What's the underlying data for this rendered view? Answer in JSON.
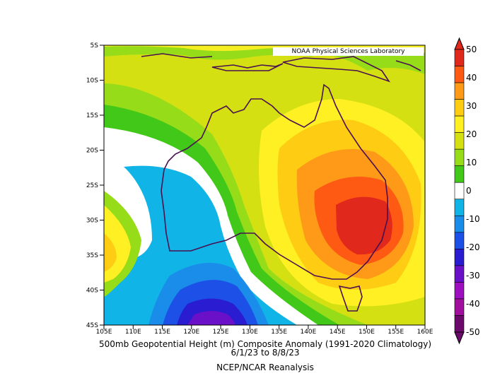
{
  "map": {
    "credit": "NOAA Physical Sciences Laboratory",
    "title_line1": "500mb Geopotential Height (m) Composite Anomaly (1991-2020 Climatology)",
    "title_line2": "6/1/23   to 8/8/23",
    "source": "NCEP/NCAR Reanalysis",
    "lat_ticks": [
      "5S",
      "10S",
      "15S",
      "20S",
      "25S",
      "30S",
      "35S",
      "40S",
      "45S"
    ],
    "lon_ticks": [
      "105E",
      "110E",
      "115E",
      "120E",
      "125E",
      "130E",
      "135E",
      "140E",
      "145E",
      "150E",
      "155E",
      "160E"
    ],
    "colorbar": {
      "labels": [
        "50",
        "40",
        "30",
        "20",
        "10",
        "0",
        "-10",
        "-20",
        "-30",
        "-40",
        "-50"
      ],
      "colors": [
        "#e0281c",
        "#ff5a14",
        "#ff9a18",
        "#ffcc14",
        "#fff024",
        "#d4e012",
        "#96dc18",
        "#42c818",
        "#ffffff",
        "#10b4e6",
        "#1a8cea",
        "#1c50e6",
        "#2a1cd0",
        "#6a10c8",
        "#9c10c0",
        "#a0109c",
        "#6c0a6c"
      ]
    },
    "anomaly_max_center": "150E 30S",
    "anomaly_min_center": "123E 45S"
  }
}
